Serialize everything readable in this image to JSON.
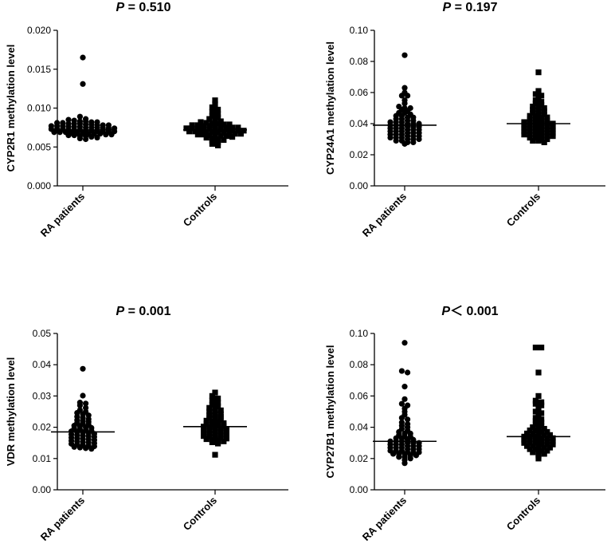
{
  "chart_data": [
    {
      "type": "scatter",
      "title_prefix": "P",
      "title_rest": " = 0.510",
      "ylabel": "CYP2R1 methylation level",
      "xlabel": "",
      "categories": [
        "RA patients",
        "Controls"
      ],
      "yticks": [
        "0.000",
        "0.005",
        "0.010",
        "0.015",
        "0.020"
      ],
      "ylim": [
        0,
        0.02
      ],
      "markers": [
        "circle",
        "square"
      ],
      "medians": [
        0.0072,
        0.0072
      ],
      "series": [
        {
          "values": [
            0.0165,
            0.0131,
            0.0089,
            0.0086,
            0.0085,
            0.0084,
            0.0083,
            0.0083,
            0.0082,
            0.0082,
            0.0081,
            0.0081,
            0.008,
            0.008,
            0.008,
            0.0079,
            0.0079,
            0.0078,
            0.0078,
            0.0078,
            0.0077,
            0.0077,
            0.0077,
            0.0076,
            0.0076,
            0.0076,
            0.0075,
            0.0075,
            0.0075,
            0.0074,
            0.0074,
            0.0074,
            0.0073,
            0.0073,
            0.0073,
            0.0072,
            0.0072,
            0.0072,
            0.0071,
            0.0071,
            0.0071,
            0.007,
            0.007,
            0.007,
            0.0069,
            0.0069,
            0.0069,
            0.0068,
            0.0068,
            0.0068,
            0.0067,
            0.0067,
            0.0067,
            0.0066,
            0.0066,
            0.0065,
            0.0065,
            0.0064,
            0.0064,
            0.0063,
            0.0062,
            0.0061,
            0.006
          ]
        },
        {
          "values": [
            0.011,
            0.0105,
            0.0101,
            0.0098,
            0.0095,
            0.0092,
            0.009,
            0.0088,
            0.0086,
            0.0084,
            0.0083,
            0.0082,
            0.0081,
            0.008,
            0.008,
            0.0079,
            0.0079,
            0.0078,
            0.0078,
            0.0077,
            0.0077,
            0.0076,
            0.0076,
            0.0075,
            0.0075,
            0.0075,
            0.0074,
            0.0074,
            0.0073,
            0.0073,
            0.0073,
            0.0072,
            0.0072,
            0.0072,
            0.0071,
            0.0071,
            0.0071,
            0.007,
            0.007,
            0.007,
            0.0069,
            0.0069,
            0.0069,
            0.0068,
            0.0068,
            0.0067,
            0.0067,
            0.0066,
            0.0066,
            0.0065,
            0.0065,
            0.0064,
            0.0064,
            0.0063,
            0.0062,
            0.0061,
            0.006,
            0.0059,
            0.0058,
            0.0056,
            0.0054,
            0.0052
          ]
        }
      ]
    },
    {
      "type": "scatter",
      "title_prefix": "P",
      "title_rest": " = 0.197",
      "ylabel": "CYP24A1 methylation level",
      "xlabel": "",
      "categories": [
        "RA patients",
        "Controls"
      ],
      "yticks": [
        "0.00",
        "0.02",
        "0.04",
        "0.06",
        "0.08",
        "0.10"
      ],
      "ylim": [
        0,
        0.1
      ],
      "markers": [
        "circle",
        "square"
      ],
      "medians": [
        0.039,
        0.04
      ],
      "series": [
        {
          "values": [
            0.084,
            0.063,
            0.06,
            0.058,
            0.058,
            0.055,
            0.053,
            0.051,
            0.05,
            0.05,
            0.049,
            0.048,
            0.047,
            0.047,
            0.046,
            0.045,
            0.045,
            0.044,
            0.044,
            0.043,
            0.043,
            0.042,
            0.042,
            0.041,
            0.041,
            0.041,
            0.04,
            0.04,
            0.04,
            0.039,
            0.039,
            0.039,
            0.038,
            0.038,
            0.038,
            0.037,
            0.037,
            0.037,
            0.036,
            0.036,
            0.036,
            0.035,
            0.035,
            0.035,
            0.034,
            0.034,
            0.034,
            0.033,
            0.033,
            0.033,
            0.032,
            0.032,
            0.032,
            0.031,
            0.031,
            0.031,
            0.03,
            0.03,
            0.03,
            0.029,
            0.029,
            0.028,
            0.028,
            0.027
          ]
        },
        {
          "values": [
            0.073,
            0.061,
            0.059,
            0.058,
            0.057,
            0.055,
            0.054,
            0.053,
            0.052,
            0.051,
            0.05,
            0.05,
            0.049,
            0.048,
            0.048,
            0.047,
            0.046,
            0.046,
            0.045,
            0.045,
            0.044,
            0.044,
            0.043,
            0.043,
            0.042,
            0.042,
            0.041,
            0.041,
            0.041,
            0.04,
            0.04,
            0.04,
            0.039,
            0.039,
            0.039,
            0.038,
            0.038,
            0.038,
            0.037,
            0.037,
            0.037,
            0.036,
            0.036,
            0.036,
            0.035,
            0.035,
            0.035,
            0.034,
            0.034,
            0.034,
            0.033,
            0.033,
            0.033,
            0.032,
            0.032,
            0.032,
            0.031,
            0.031,
            0.03,
            0.03,
            0.029,
            0.029,
            0.028
          ]
        }
      ]
    },
    {
      "type": "scatter",
      "title_prefix": "P",
      "title_rest": " = 0.001",
      "ylabel": "VDR methylation level",
      "xlabel": "",
      "categories": [
        "RA patients",
        "Controls"
      ],
      "yticks": [
        "0.00",
        "0.01",
        "0.02",
        "0.03",
        "0.04",
        "0.05"
      ],
      "ylim": [
        0,
        0.05
      ],
      "markers": [
        "circle",
        "square"
      ],
      "medians": [
        0.0185,
        0.0202
      ],
      "series": [
        {
          "values": [
            0.0387,
            0.0301,
            0.0279,
            0.0276,
            0.027,
            0.0262,
            0.0255,
            0.025,
            0.0246,
            0.0242,
            0.0238,
            0.0234,
            0.023,
            0.0226,
            0.0223,
            0.022,
            0.0217,
            0.0214,
            0.0211,
            0.0208,
            0.0205,
            0.0203,
            0.02,
            0.0198,
            0.0196,
            0.0193,
            0.0191,
            0.0189,
            0.0187,
            0.0185,
            0.0183,
            0.0181,
            0.0179,
            0.0177,
            0.0175,
            0.0173,
            0.0171,
            0.0169,
            0.0167,
            0.0165,
            0.0163,
            0.0161,
            0.0159,
            0.0157,
            0.0155,
            0.0153,
            0.0151,
            0.0149,
            0.0147,
            0.0145,
            0.0143,
            0.0141,
            0.0139,
            0.0137,
            0.0135,
            0.0133,
            0.0131
          ]
        },
        {
          "values": [
            0.0311,
            0.03,
            0.0292,
            0.0285,
            0.0278,
            0.0272,
            0.0267,
            0.0262,
            0.0258,
            0.0254,
            0.025,
            0.0246,
            0.0242,
            0.0239,
            0.0236,
            0.0233,
            0.023,
            0.0227,
            0.0224,
            0.0221,
            0.0218,
            0.0216,
            0.0213,
            0.0211,
            0.0208,
            0.0206,
            0.0204,
            0.0202,
            0.02,
            0.0198,
            0.0196,
            0.0194,
            0.0192,
            0.019,
            0.0188,
            0.0186,
            0.0184,
            0.0182,
            0.018,
            0.0178,
            0.0176,
            0.0174,
            0.0172,
            0.017,
            0.0168,
            0.0166,
            0.0164,
            0.0162,
            0.016,
            0.0158,
            0.0155,
            0.0152,
            0.0148,
            0.0112
          ]
        }
      ]
    },
    {
      "type": "scatter",
      "title_prefix": "P",
      "title_rest": "＜ 0.001",
      "ylabel": "CYP27B1 methylation level",
      "xlabel": "",
      "categories": [
        "RA patients",
        "Controls"
      ],
      "yticks": [
        "0.00",
        "0.02",
        "0.04",
        "0.06",
        "0.08",
        "0.10"
      ],
      "ylim": [
        0,
        0.1
      ],
      "markers": [
        "circle",
        "square"
      ],
      "medians": [
        0.031,
        0.034
      ],
      "series": [
        {
          "values": [
            0.094,
            0.076,
            0.075,
            0.066,
            0.058,
            0.055,
            0.054,
            0.052,
            0.05,
            0.048,
            0.046,
            0.045,
            0.043,
            0.042,
            0.041,
            0.04,
            0.039,
            0.038,
            0.037,
            0.036,
            0.036,
            0.035,
            0.034,
            0.034,
            0.033,
            0.033,
            0.032,
            0.032,
            0.031,
            0.031,
            0.031,
            0.03,
            0.03,
            0.03,
            0.029,
            0.029,
            0.029,
            0.028,
            0.028,
            0.028,
            0.027,
            0.027,
            0.027,
            0.026,
            0.026,
            0.026,
            0.025,
            0.025,
            0.025,
            0.024,
            0.024,
            0.024,
            0.023,
            0.023,
            0.023,
            0.022,
            0.022,
            0.021,
            0.021,
            0.02,
            0.019,
            0.017
          ]
        },
        {
          "values": [
            0.091,
            0.091,
            0.075,
            0.06,
            0.057,
            0.056,
            0.055,
            0.054,
            0.052,
            0.05,
            0.049,
            0.048,
            0.046,
            0.045,
            0.044,
            0.043,
            0.042,
            0.041,
            0.04,
            0.039,
            0.039,
            0.038,
            0.038,
            0.037,
            0.037,
            0.036,
            0.036,
            0.035,
            0.035,
            0.035,
            0.034,
            0.034,
            0.034,
            0.033,
            0.033,
            0.033,
            0.032,
            0.032,
            0.032,
            0.031,
            0.031,
            0.031,
            0.03,
            0.03,
            0.03,
            0.029,
            0.029,
            0.029,
            0.028,
            0.028,
            0.028,
            0.027,
            0.027,
            0.026,
            0.026,
            0.025,
            0.025,
            0.024,
            0.023,
            0.023,
            0.022,
            0.02
          ]
        }
      ]
    }
  ]
}
